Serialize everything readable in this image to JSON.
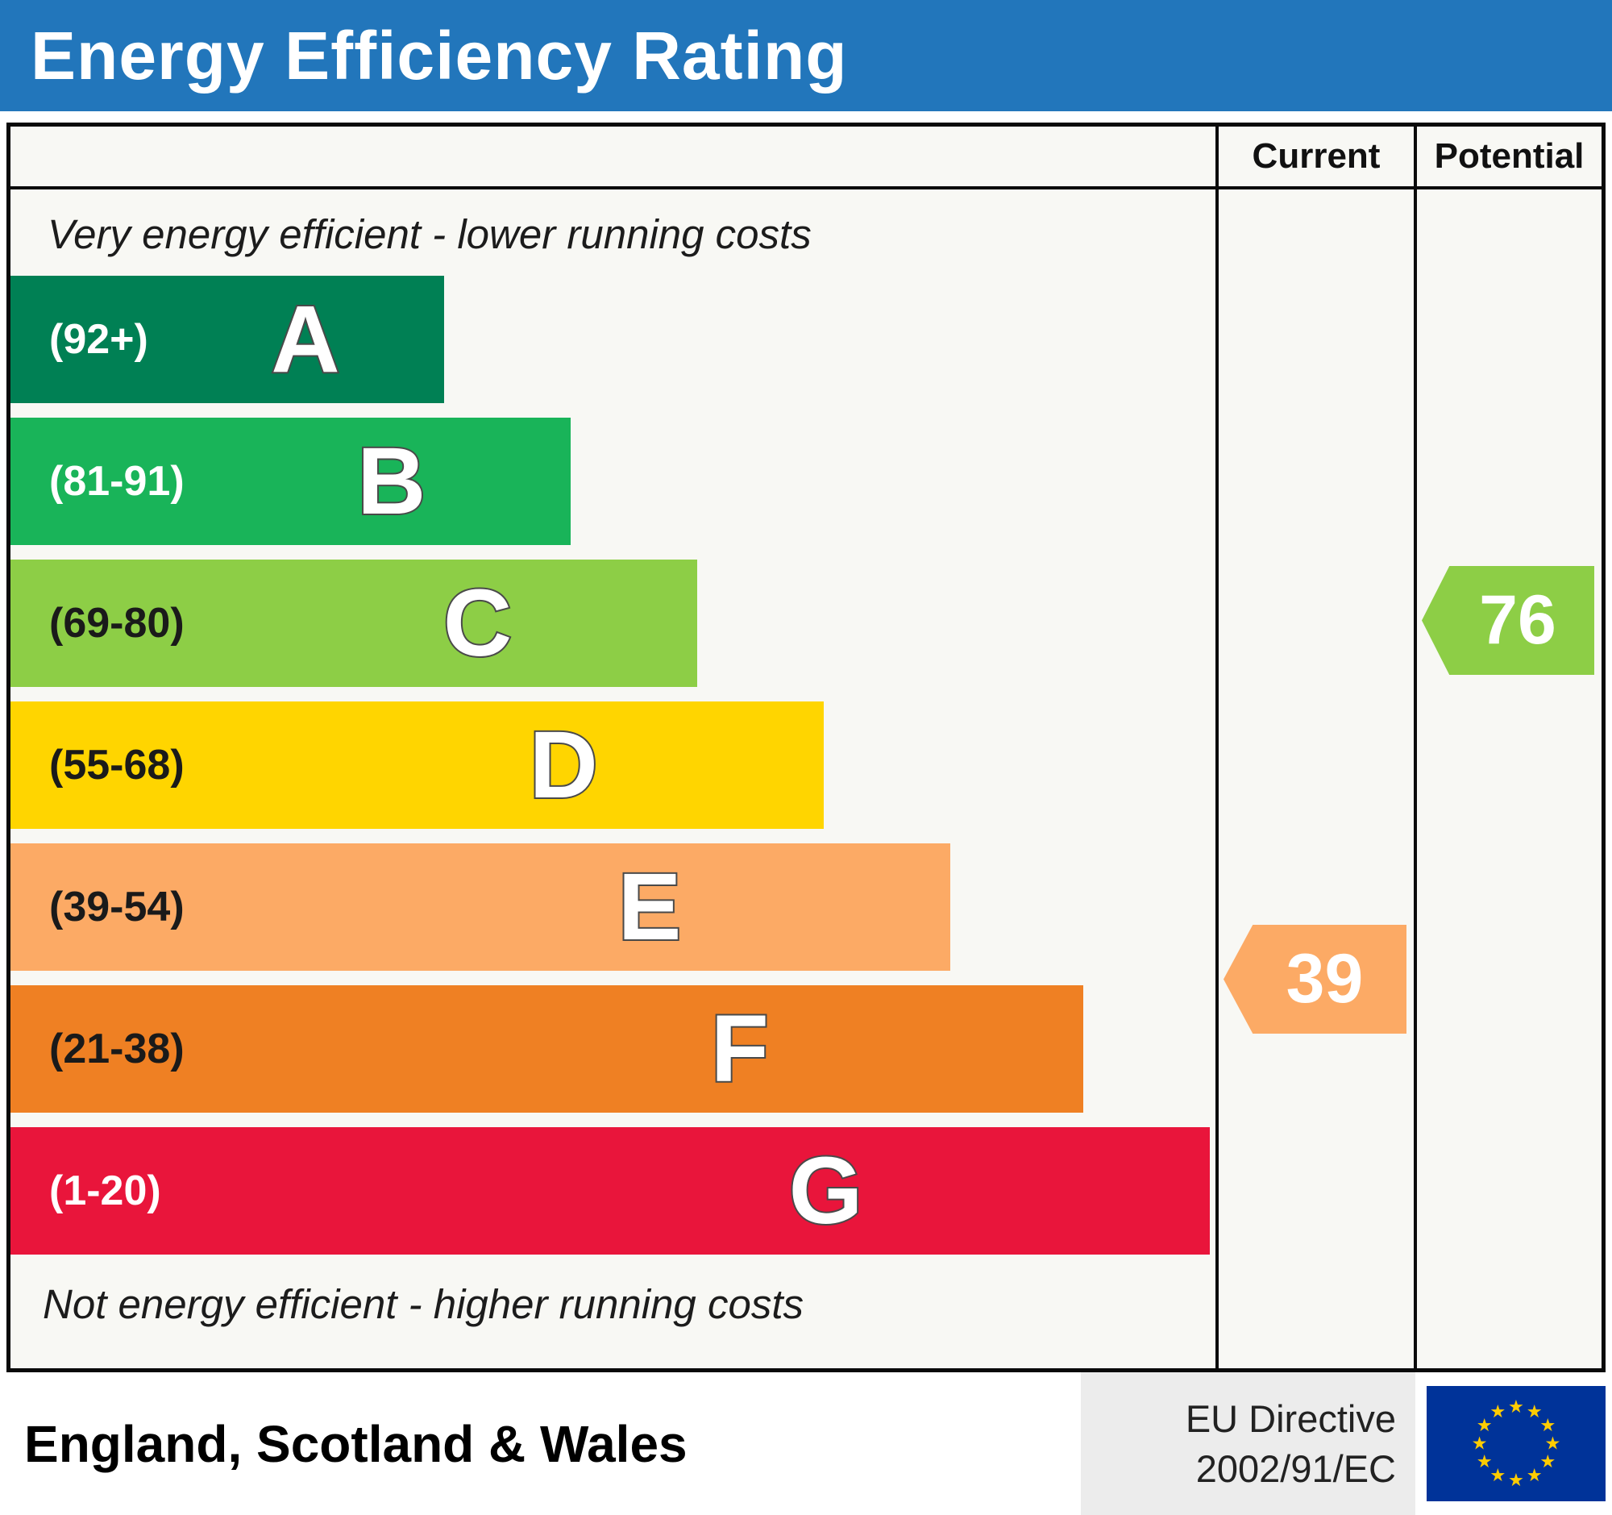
{
  "header": {
    "title": "Energy Efficiency Rating",
    "bg_color": "#2276bb"
  },
  "columns": {
    "current_label": "Current",
    "potential_label": "Potential"
  },
  "chart_data": {
    "type": "bar",
    "title": "Energy Efficiency Rating",
    "top_note": "Very energy efficient - lower running costs",
    "bottom_note": "Not energy efficient - higher running costs",
    "bands": [
      {
        "letter": "A",
        "range": "(92+)",
        "min": 92,
        "max": 100,
        "color": "#008054",
        "width_pct": 36,
        "label_color": "#ffffff"
      },
      {
        "letter": "B",
        "range": "(81-91)",
        "min": 81,
        "max": 91,
        "color": "#19b459",
        "width_pct": 46.5,
        "label_color": "#ffffff"
      },
      {
        "letter": "C",
        "range": "(69-80)",
        "min": 69,
        "max": 80,
        "color": "#8dce46",
        "width_pct": 57,
        "label_color": "#1a1a1a"
      },
      {
        "letter": "D",
        "range": "(55-68)",
        "min": 55,
        "max": 68,
        "color": "#ffd500",
        "width_pct": 67.5,
        "label_color": "#1a1a1a"
      },
      {
        "letter": "E",
        "range": "(39-54)",
        "min": 39,
        "max": 54,
        "color": "#fcaa65",
        "width_pct": 78,
        "label_color": "#1a1a1a"
      },
      {
        "letter": "F",
        "range": "(21-38)",
        "min": 21,
        "max": 38,
        "color": "#ef8023",
        "width_pct": 89,
        "label_color": "#1a1a1a"
      },
      {
        "letter": "G",
        "range": "(1-20)",
        "min": 1,
        "max": 20,
        "color": "#e9153b",
        "width_pct": 99.5,
        "label_color": "#ffffff"
      }
    ],
    "current": {
      "value": "39",
      "band": "E",
      "color": "#fcaa65"
    },
    "potential": {
      "value": "76",
      "band": "C",
      "color": "#8dce46"
    }
  },
  "footer": {
    "region": "England, Scotland & Wales",
    "directive_line1": "EU Directive",
    "directive_line2": "2002/91/EC",
    "eu_flag": {
      "bg": "#003399",
      "star_color": "#ffcc00"
    }
  }
}
